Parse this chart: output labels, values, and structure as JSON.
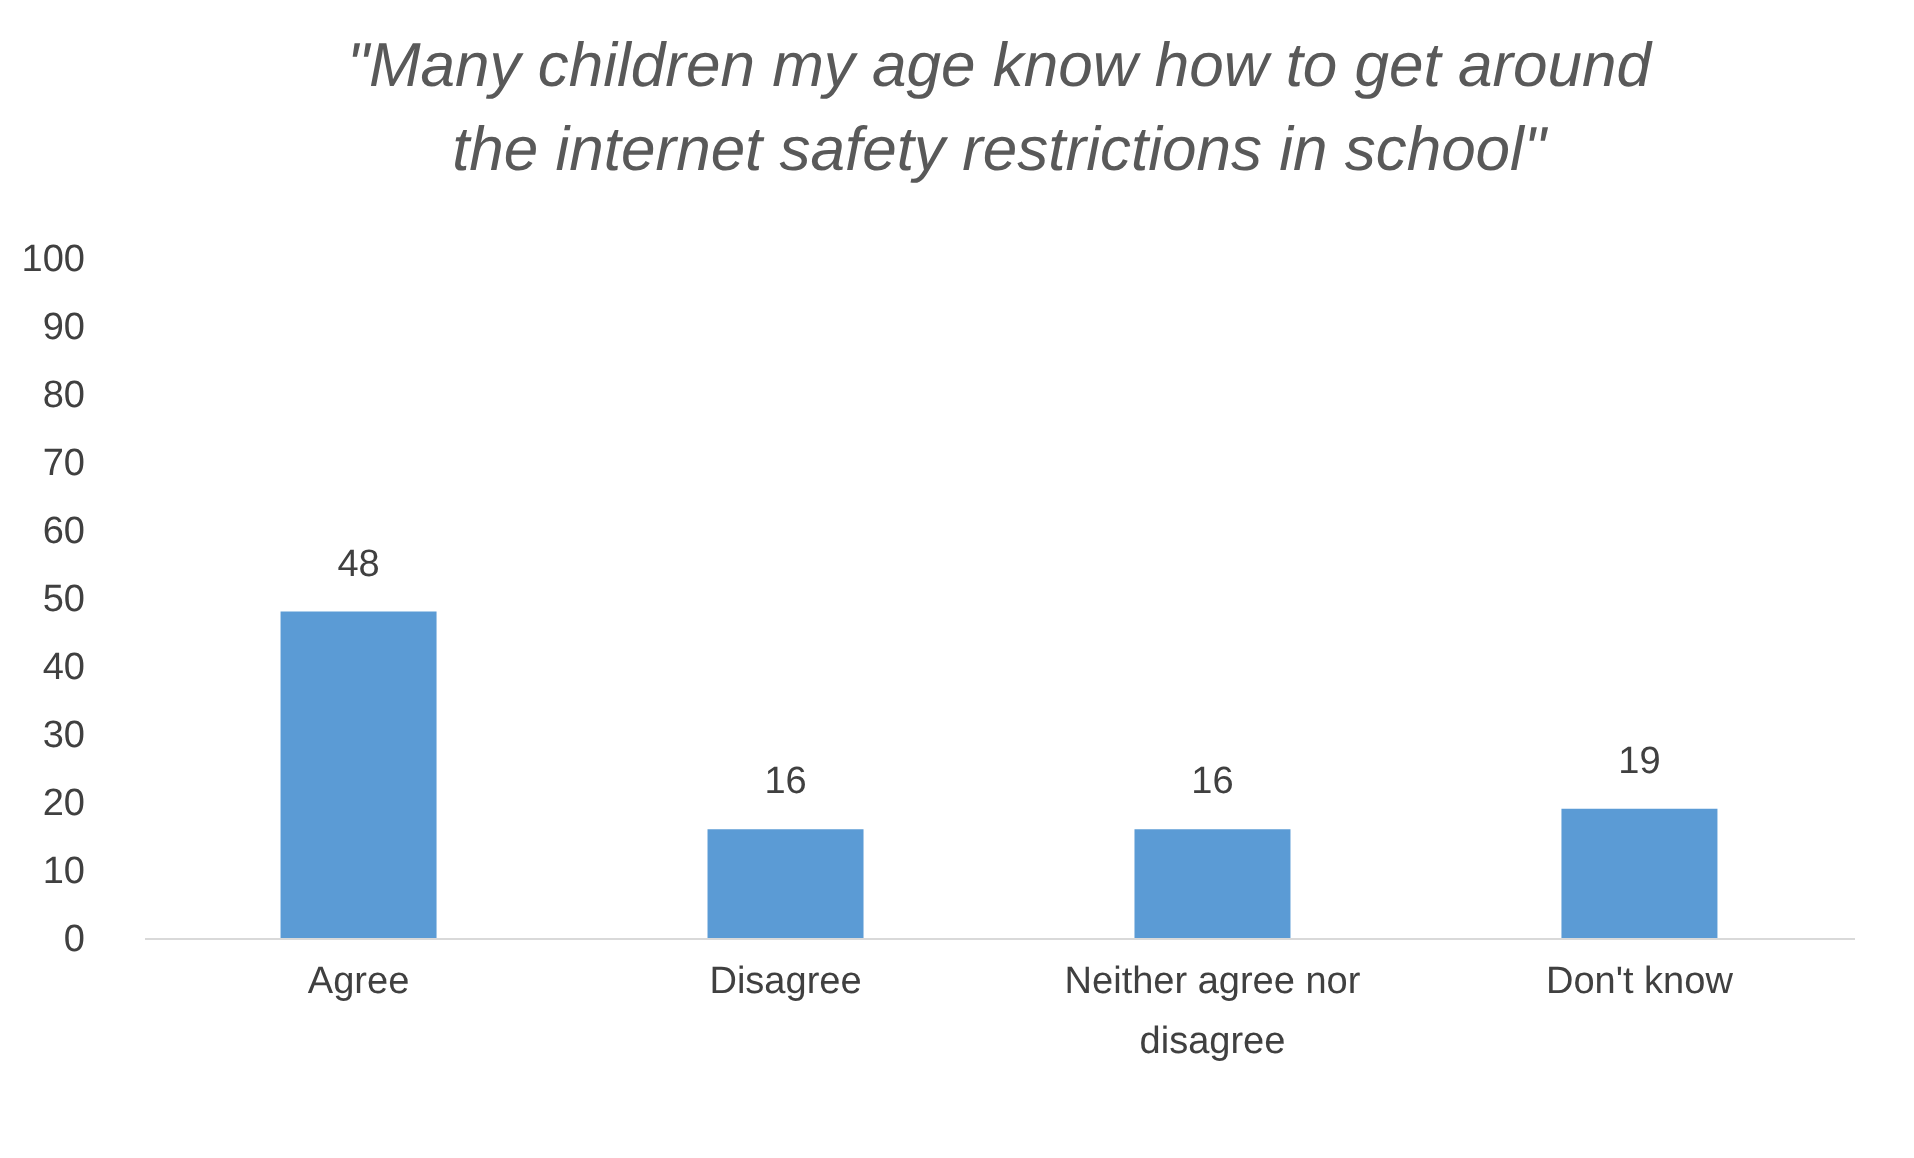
{
  "chart_data": {
    "type": "bar",
    "title": [
      "\"Many children my age know how to get around",
      "the internet safety restrictions in school\""
    ],
    "categories": [
      "Agree",
      "Disagree",
      "Neither agree nor disagree",
      "Don't know"
    ],
    "values": [
      48,
      16,
      16,
      19
    ],
    "color": "#5b9bd5",
    "ylim": [
      0,
      100
    ],
    "yticks": [
      0,
      10,
      20,
      30,
      40,
      50,
      60,
      70,
      80,
      90,
      100
    ],
    "grid": false,
    "data_labels": true
  }
}
